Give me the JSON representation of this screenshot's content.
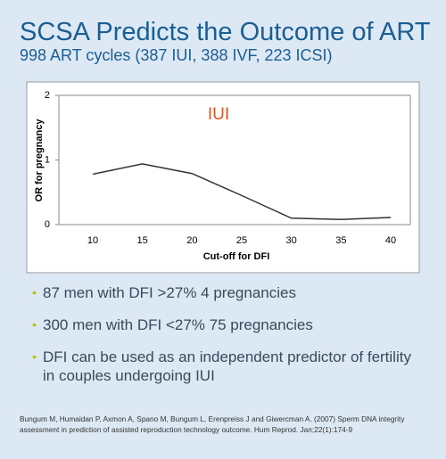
{
  "title": "SCSA Predicts the Outcome of ART",
  "subtitle": "998 ART cycles (387 IUI, 388 IVF, 223 ICSI)",
  "chart_data": {
    "type": "line",
    "annotation": "IUI",
    "x_label": "Cut-off for DFI",
    "y_label": "OR for pregnancy",
    "categories": [
      "10",
      "15",
      "20",
      "25",
      "30",
      "35",
      "40"
    ],
    "values": [
      0.78,
      0.94,
      0.79,
      0.45,
      0.1,
      0.08,
      0.11
    ],
    "color": "#333333",
    "ylim": [
      0,
      2
    ],
    "yticks": [
      0,
      1,
      2
    ],
    "grid": false
  },
  "bullets": [
    "87 men with DFI >27% 4 pregnancies",
    "300 men with DFI <27% 75 pregnancies",
    "DFI can be used as an independent predictor of fertility in couples undergoing IUI"
  ],
  "reference": "Bungum M, Humaidan P, Axmon A, Spano M, Bungum L, Erenpreiss J and Giwercman A. (2007) Sperm DNA integrity assessment in prediction of assisted reproduction technology outcome. Hum Reprod. Jan;22(1):174-9"
}
